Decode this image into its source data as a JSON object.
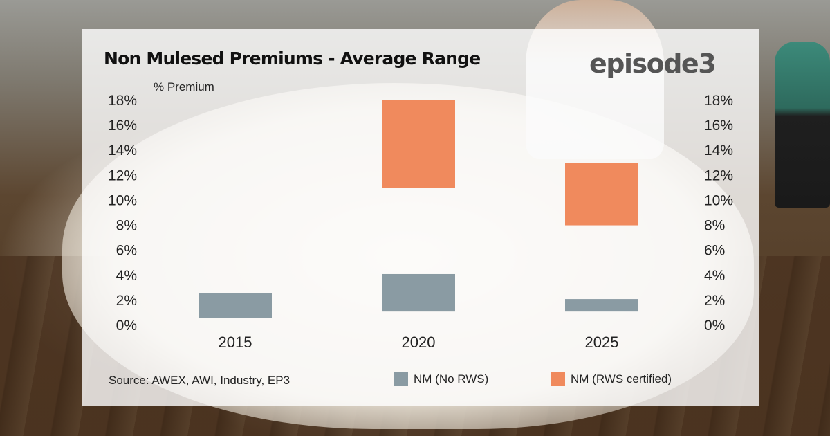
{
  "chart_data": {
    "type": "floating-bar",
    "title": "Non Mulesed Premiums - Average Range",
    "ylabel": "% Premium",
    "categories": [
      "2015",
      "2020",
      "2025"
    ],
    "ylim": [
      0,
      18
    ],
    "yticks": [
      "0%",
      "2%",
      "4%",
      "6%",
      "8%",
      "10%",
      "12%",
      "14%",
      "16%",
      "18%"
    ],
    "series": [
      {
        "name": "NM (No RWS)",
        "color": "#8a9ba3",
        "ranges": [
          [
            0.6,
            2.6
          ],
          [
            1.1,
            4.1
          ],
          [
            1.1,
            2.1
          ]
        ]
      },
      {
        "name": "NM (RWS certified)",
        "color": "#f08a5d",
        "ranges": [
          null,
          [
            11.0,
            18.0
          ],
          [
            8.0,
            13.0
          ]
        ]
      }
    ],
    "legend_position": "bottom",
    "source": "Source: AWEX, AWI, Industry, EP3",
    "brand": "episode3"
  }
}
